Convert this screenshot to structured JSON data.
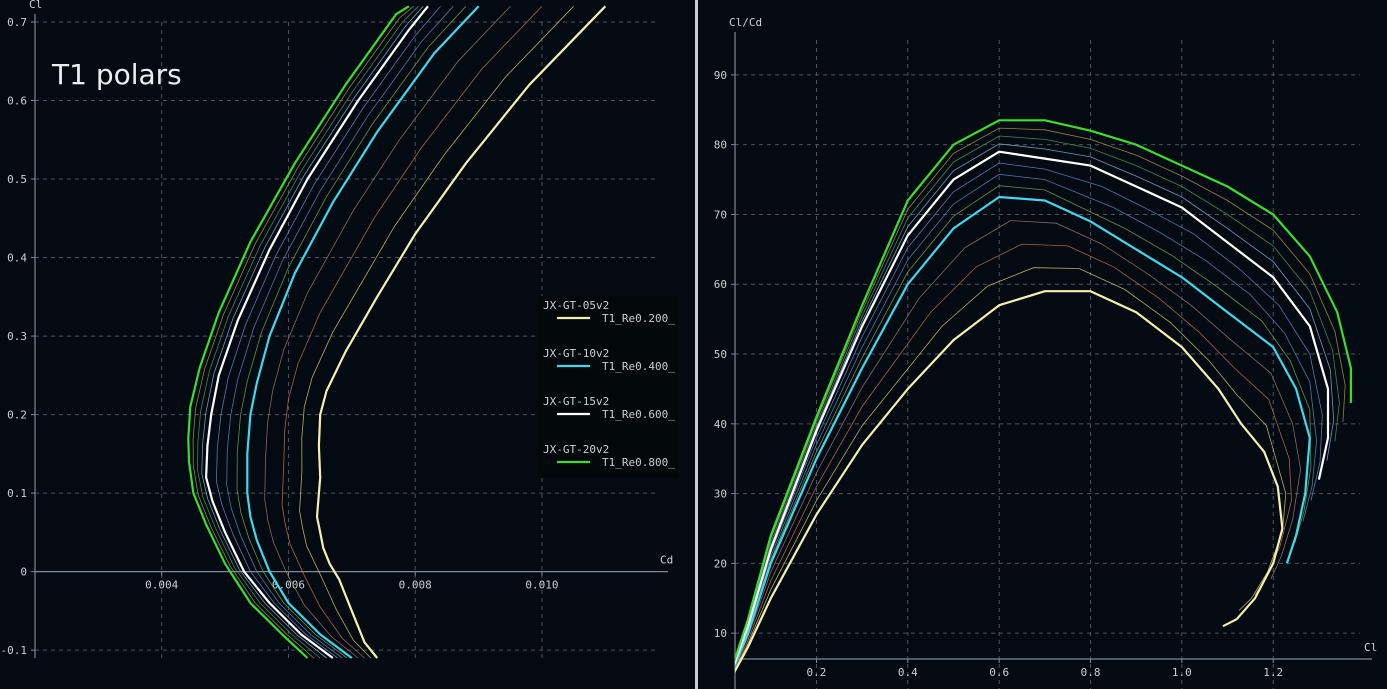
{
  "title": "T1 polars",
  "legend": [
    {
      "group": "JX-GT-05v2",
      "label": "T1_Re0.200_",
      "color": "#f5f0b0"
    },
    {
      "group": "JX-GT-10v2",
      "label": "T1_Re0.400_",
      "color": "#3fd8ec"
    },
    {
      "group": "JX-GT-15v2",
      "label": "T1_Re0.600_",
      "color": "#ffffff"
    },
    {
      "group": "JX-GT-20v2",
      "label": "T1_Re0.800_",
      "color": "#3ddc2e"
    }
  ],
  "thin_colors": [
    "#d8c870",
    "#c87050",
    "#a07870",
    "#7aa848",
    "#5a8ab8",
    "#6a8ac8",
    "#8ab0d0",
    "#4a9a60",
    "#b09a40",
    "#a09050",
    "#9a8a40",
    "#6a9a40"
  ],
  "chart_data": [
    {
      "type": "line",
      "panel": "left",
      "xlabel": "Cd",
      "ylabel": "Cl",
      "xlim": [
        0.002,
        0.0118
      ],
      "ylim": [
        -0.11,
        0.7
      ],
      "xticks": [
        "0.004",
        "0.006",
        "0.008",
        "0.010"
      ],
      "xtick_values": [
        0.004,
        0.006,
        0.008,
        0.01
      ],
      "yticks": [
        "-0.1",
        "0",
        "0.1",
        "0.2",
        "0.3",
        "0.4",
        "0.5",
        "0.6",
        "0.7"
      ],
      "ytick_values": [
        -0.1,
        0,
        0.1,
        0.2,
        0.3,
        0.4,
        0.5,
        0.6,
        0.7
      ],
      "grid": true,
      "legend_position": "right",
      "series": [
        {
          "name": "T1_Re0.200_",
          "points": [
            [
              0.0074,
              -0.11
            ],
            [
              0.0072,
              -0.09
            ],
            [
              0.007,
              -0.05
            ],
            [
              0.0068,
              -0.01
            ],
            [
              0.00665,
              0.01
            ],
            [
              0.00655,
              0.03
            ],
            [
              0.0065,
              0.05
            ],
            [
              0.00645,
              0.07
            ],
            [
              0.0065,
              0.12
            ],
            [
              0.00648,
              0.16
            ],
            [
              0.0065,
              0.2
            ],
            [
              0.0066,
              0.23
            ],
            [
              0.0069,
              0.28
            ],
            [
              0.0074,
              0.35
            ],
            [
              0.008,
              0.43
            ],
            [
              0.0088,
              0.52
            ],
            [
              0.0098,
              0.62
            ],
            [
              0.011,
              0.72
            ]
          ]
        },
        {
          "name": "T1_Re0.400_",
          "points": [
            [
              0.007,
              -0.11
            ],
            [
              0.0065,
              -0.08
            ],
            [
              0.006,
              -0.04
            ],
            [
              0.0057,
              0.0
            ],
            [
              0.0055,
              0.04
            ],
            [
              0.0054,
              0.07
            ],
            [
              0.00535,
              0.1
            ],
            [
              0.00535,
              0.15
            ],
            [
              0.0054,
              0.2
            ],
            [
              0.0055,
              0.24
            ],
            [
              0.0057,
              0.3
            ],
            [
              0.0061,
              0.38
            ],
            [
              0.0067,
              0.47
            ],
            [
              0.0074,
              0.56
            ],
            [
              0.0083,
              0.66
            ],
            [
              0.009,
              0.72
            ]
          ]
        },
        {
          "name": "T1_Re0.600_",
          "points": [
            [
              0.0067,
              -0.11
            ],
            [
              0.0062,
              -0.08
            ],
            [
              0.0057,
              -0.04
            ],
            [
              0.0053,
              0.0
            ],
            [
              0.005,
              0.05
            ],
            [
              0.0048,
              0.09
            ],
            [
              0.0047,
              0.12
            ],
            [
              0.00472,
              0.16
            ],
            [
              0.00478,
              0.2
            ],
            [
              0.0049,
              0.25
            ],
            [
              0.0052,
              0.32
            ],
            [
              0.0057,
              0.41
            ],
            [
              0.0063,
              0.5
            ],
            [
              0.0071,
              0.6
            ],
            [
              0.0079,
              0.69
            ],
            [
              0.0082,
              0.72
            ]
          ]
        },
        {
          "name": "T1_Re0.800_",
          "points": [
            [
              0.0063,
              -0.11
            ],
            [
              0.0059,
              -0.08
            ],
            [
              0.0054,
              -0.04
            ],
            [
              0.005,
              0.01
            ],
            [
              0.0047,
              0.06
            ],
            [
              0.0045,
              0.1
            ],
            [
              0.00443,
              0.14
            ],
            [
              0.00442,
              0.17
            ],
            [
              0.00445,
              0.21
            ],
            [
              0.0046,
              0.26
            ],
            [
              0.0049,
              0.33
            ],
            [
              0.0054,
              0.42
            ],
            [
              0.0061,
              0.52
            ],
            [
              0.0069,
              0.62
            ],
            [
              0.0077,
              0.71
            ],
            [
              0.0079,
              0.72
            ]
          ]
        }
      ]
    },
    {
      "type": "line",
      "panel": "right",
      "xlabel": "Cl",
      "ylabel": "Cl/Cd",
      "xlim": [
        -0.02,
        1.39
      ],
      "ylim": [
        2,
        95
      ],
      "xticks": [
        "0.2",
        "0.4",
        "0.6",
        "0.8",
        "1.0",
        "1.2"
      ],
      "xtick_values": [
        0.2,
        0.4,
        0.6,
        0.8,
        1.0,
        1.2
      ],
      "yticks": [
        "10",
        "20",
        "30",
        "40",
        "50",
        "60",
        "70",
        "80",
        "90"
      ],
      "ytick_values": [
        10,
        20,
        30,
        40,
        50,
        60,
        70,
        80,
        90
      ],
      "grid": true,
      "series": [
        {
          "name": "T1_Re0.200_",
          "points": [
            [
              0.0,
              2
            ],
            [
              0.05,
              8
            ],
            [
              0.1,
              15
            ],
            [
              0.2,
              27
            ],
            [
              0.3,
              37
            ],
            [
              0.4,
              45
            ],
            [
              0.5,
              52
            ],
            [
              0.6,
              57
            ],
            [
              0.7,
              59
            ],
            [
              0.8,
              59
            ],
            [
              0.9,
              56
            ],
            [
              1.0,
              51
            ],
            [
              1.08,
              45
            ],
            [
              1.13,
              40
            ],
            [
              1.18,
              36
            ],
            [
              1.21,
              31
            ],
            [
              1.22,
              25
            ],
            [
              1.2,
              20
            ],
            [
              1.16,
              15
            ],
            [
              1.12,
              12
            ],
            [
              1.09,
              11
            ]
          ]
        },
        {
          "name": "T1_Re0.400_",
          "points": [
            [
              0.0,
              2
            ],
            [
              0.05,
              10
            ],
            [
              0.1,
              20
            ],
            [
              0.2,
              35
            ],
            [
              0.3,
              48
            ],
            [
              0.4,
              60
            ],
            [
              0.5,
              68
            ],
            [
              0.6,
              72.5
            ],
            [
              0.7,
              72
            ],
            [
              0.8,
              69
            ],
            [
              0.9,
              65
            ],
            [
              1.0,
              61
            ],
            [
              1.1,
              56
            ],
            [
              1.2,
              51
            ],
            [
              1.25,
              45
            ],
            [
              1.28,
              38
            ],
            [
              1.27,
              30
            ],
            [
              1.25,
              24
            ],
            [
              1.23,
              20
            ]
          ]
        },
        {
          "name": "T1_Re0.600_",
          "points": [
            [
              0.0,
              2
            ],
            [
              0.05,
              11
            ],
            [
              0.1,
              22
            ],
            [
              0.2,
              39
            ],
            [
              0.3,
              54
            ],
            [
              0.4,
              67
            ],
            [
              0.5,
              75
            ],
            [
              0.6,
              79
            ],
            [
              0.7,
              78
            ],
            [
              0.8,
              77
            ],
            [
              0.9,
              74
            ],
            [
              1.0,
              71
            ],
            [
              1.1,
              66
            ],
            [
              1.2,
              61
            ],
            [
              1.28,
              54
            ],
            [
              1.32,
              45
            ],
            [
              1.32,
              38
            ],
            [
              1.3,
              32
            ]
          ]
        },
        {
          "name": "T1_Re0.800_",
          "points": [
            [
              0.0,
              2
            ],
            [
              0.05,
              12
            ],
            [
              0.1,
              24
            ],
            [
              0.2,
              41
            ],
            [
              0.3,
              57
            ],
            [
              0.4,
              72
            ],
            [
              0.5,
              80
            ],
            [
              0.6,
              83.5
            ],
            [
              0.7,
              83.5
            ],
            [
              0.8,
              82
            ],
            [
              0.9,
              80
            ],
            [
              1.0,
              77
            ],
            [
              1.1,
              74
            ],
            [
              1.2,
              70
            ],
            [
              1.28,
              64
            ],
            [
              1.34,
              56
            ],
            [
              1.37,
              48
            ],
            [
              1.37,
              43
            ]
          ]
        }
      ]
    }
  ]
}
